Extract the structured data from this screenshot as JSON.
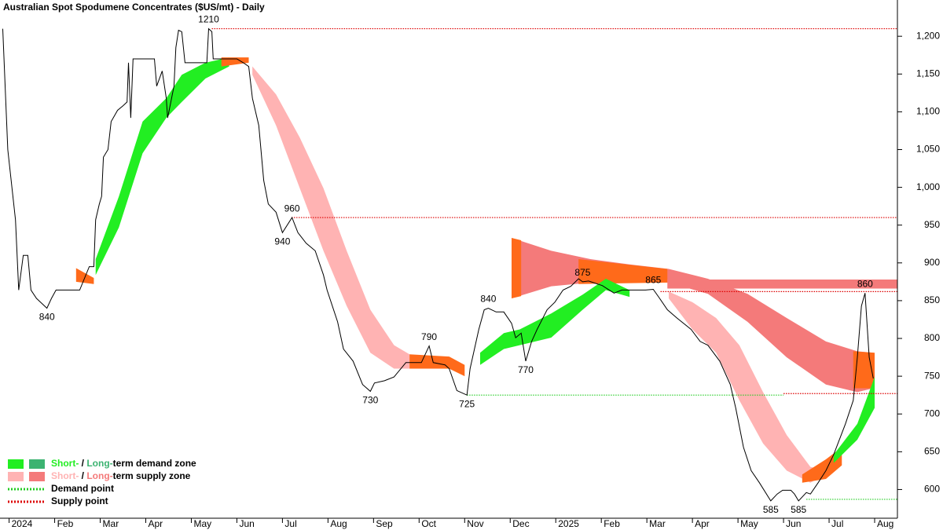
{
  "chart_data": {
    "type": "line",
    "title": "Australian Spot Spodumene Concentrates ($US/mt) - Daily",
    "xlim": [
      -0.2,
      19.5
    ],
    "ylim": [
      562,
      1248
    ],
    "xticks": [
      {
        "value": 0,
        "label": "2024"
      },
      {
        "value": 1,
        "label": "Feb"
      },
      {
        "value": 2,
        "label": "Mar"
      },
      {
        "value": 3,
        "label": "Apr"
      },
      {
        "value": 4,
        "label": "May"
      },
      {
        "value": 5,
        "label": "Jun"
      },
      {
        "value": 6,
        "label": "Jul"
      },
      {
        "value": 7,
        "label": "Aug"
      },
      {
        "value": 8,
        "label": "Sep"
      },
      {
        "value": 9,
        "label": "Oct"
      },
      {
        "value": 10,
        "label": "Nov"
      },
      {
        "value": 11,
        "label": "Dec"
      },
      {
        "value": 12,
        "label": "2025"
      },
      {
        "value": 13,
        "label": "Feb"
      },
      {
        "value": 14,
        "label": "Mar"
      },
      {
        "value": 15,
        "label": "Apr"
      },
      {
        "value": 16,
        "label": "May"
      },
      {
        "value": 17,
        "label": "Jun"
      },
      {
        "value": 18,
        "label": "Jul"
      },
      {
        "value": 19,
        "label": "Aug"
      }
    ],
    "yticks": [
      600,
      650,
      700,
      750,
      800,
      850,
      900,
      950,
      {
        "value": 1000,
        "label": "1,000"
      },
      {
        "value": 1050,
        "label": "1,050"
      },
      {
        "value": 1100,
        "label": "1,100"
      },
      {
        "value": 1150,
        "label": "1,150"
      },
      {
        "value": 1200,
        "label": "1,200"
      }
    ],
    "price": {
      "color": "#000000",
      "x": [
        -0.14,
        -0.03,
        0.14,
        0.21,
        0.31,
        0.41,
        0.48,
        0.6,
        0.83,
        0.93,
        1.03,
        1.55,
        1.76,
        1.86,
        1.9,
        1.98,
        2.03,
        2.07,
        2.17,
        2.24,
        2.38,
        2.5,
        2.59,
        2.62,
        2.67,
        2.72,
        3.19,
        3.24,
        3.36,
        3.45,
        3.48,
        3.55,
        3.62,
        3.66,
        3.72,
        3.79,
        3.86,
        4.34,
        4.38,
        4.45,
        4.48,
        5.0,
        5.14,
        5.26,
        5.34,
        5.48,
        5.59,
        5.69,
        5.86,
        6.0,
        6.21,
        6.34,
        6.52,
        6.72,
        6.9,
        6.98,
        7.21,
        7.34,
        7.55,
        7.76,
        7.93,
        8.02,
        8.24,
        8.45,
        8.71,
        9.05,
        9.22,
        9.31,
        9.57,
        9.66,
        9.83,
        10.05,
        10.12,
        10.31,
        10.43,
        10.52,
        10.69,
        10.86,
        11.03,
        11.12,
        11.24,
        11.34,
        11.47,
        11.59,
        11.81,
        11.98,
        12.16,
        12.33,
        12.5,
        12.59,
        12.72,
        13.02,
        13.28,
        13.45,
        13.62,
        13.97,
        14.14,
        14.28,
        14.45,
        14.66,
        14.97,
        15.17,
        15.34,
        15.6,
        15.83,
        15.95,
        16.12,
        16.29,
        16.47,
        16.72,
        16.86,
        16.98,
        17.16,
        17.24,
        17.33,
        17.5,
        17.59,
        17.76,
        17.93,
        18.1,
        18.36,
        18.53,
        18.62,
        18.71,
        18.79,
        18.88,
        18.97
      ],
      "values": [
        1210,
        1050,
        957,
        864,
        910,
        910,
        864,
        853,
        840,
        853,
        864,
        864,
        895,
        895,
        957,
        978,
        988,
        1040,
        1050,
        1087,
        1102,
        1108,
        1113,
        1165,
        1092,
        1170,
        1170,
        1134,
        1154,
        1118,
        1092,
        1113,
        1134,
        1185,
        1208,
        1206,
        1165,
        1165,
        1210,
        1206,
        1170,
        1170,
        1165,
        1160,
        1118,
        1082,
        1009,
        978,
        967,
        940,
        960,
        940,
        926,
        916,
        884,
        864,
        822,
        786,
        770,
        739,
        730,
        741,
        744,
        749,
        768,
        768,
        790,
        768,
        765,
        760,
        731,
        725,
        760,
        812,
        838,
        840,
        835,
        835,
        820,
        801,
        807,
        770,
        796,
        812,
        838,
        848,
        864,
        869,
        879,
        875,
        876,
        870,
        860,
        864,
        864,
        864,
        865,
        853,
        838,
        827,
        812,
        796,
        791,
        770,
        739,
        708,
        656,
        625,
        609,
        585,
        594,
        599,
        599,
        594,
        585,
        596,
        594,
        609,
        625,
        646,
        687,
        718,
        775,
        843,
        860,
        775,
        747
      ]
    },
    "zones": [
      {
        "color": "#ff6a1a",
        "x": [
          1.47,
          1.86
        ],
        "upper": [
          893,
          880
        ],
        "lower": [
          875,
          872
        ]
      },
      {
        "color": "#22ee22",
        "x": [
          1.9,
          2.41,
          2.93,
          3.45,
          3.79,
          4.31,
          4.83
        ],
        "upper": [
          905,
          988,
          1087,
          1118,
          1149,
          1165,
          1172
        ],
        "lower": [
          884,
          947,
          1045,
          1092,
          1113,
          1144,
          1160
        ]
      },
      {
        "color": "#ff6a1a",
        "x": [
          4.66,
          5.26
        ],
        "upper": [
          1172,
          1172
        ],
        "lower": [
          1160,
          1165
        ]
      },
      {
        "color": "#ffb3b3",
        "x": [
          5.34,
          5.86,
          6.38,
          6.9,
          7.41,
          7.93,
          8.45,
          8.79
        ],
        "upper": [
          1160,
          1123,
          1066,
          999,
          916,
          838,
          791,
          779
        ],
        "lower": [
          1149,
          1082,
          999,
          916,
          843,
          781,
          760,
          760
        ]
      },
      {
        "color": "#ff6a1a",
        "x": [
          8.79,
          9.66,
          10.0
        ],
        "upper": [
          779,
          776,
          765
        ],
        "lower": [
          760,
          760,
          750
        ]
      },
      {
        "color": "#f47a7a",
        "x": [
          11.03,
          11.9,
          12.76,
          13.62,
          14.48,
          15.34,
          16.21,
          17.07,
          17.93,
          18.62,
          18.97
        ],
        "upper": [
          933,
          916,
          905,
          898,
          892,
          879,
          859,
          827,
          796,
          783,
          781
        ],
        "lower": [
          853,
          869,
          874,
          876,
          874,
          859,
          822,
          775,
          739,
          729,
          734
        ]
      },
      {
        "color": "#ff6a1a",
        "x": [
          11.03,
          11.24
        ],
        "upper": [
          933,
          930
        ],
        "lower": [
          853,
          856
        ]
      },
      {
        "color": "#ff6a1a",
        "x": [
          12.5,
          14.45
        ],
        "upper": [
          905,
          892
        ],
        "lower": [
          872,
          874
        ]
      },
      {
        "color": "#f47a7a",
        "x": [
          14.45,
          19.5
        ],
        "upper": [
          878,
          878
        ],
        "lower": [
          866,
          866
        ]
      },
      {
        "color": "#22ee22",
        "x": [
          10.34,
          10.86,
          11.21,
          11.9,
          12.59,
          13.1,
          13.62
        ],
        "upper": [
          781,
          807,
          812,
          833,
          858,
          879,
          864
        ],
        "lower": [
          765,
          786,
          791,
          801,
          838,
          864,
          855
        ]
      },
      {
        "color": "#ffb3b3",
        "x": [
          14.48,
          15.0,
          15.52,
          16.03,
          16.55,
          17.07,
          17.59,
          17.93
        ],
        "upper": [
          862,
          848,
          827,
          791,
          729,
          672,
          630,
          625
        ],
        "lower": [
          853,
          812,
          781,
          718,
          661,
          625,
          609,
          620
        ]
      },
      {
        "color": "#ff6a1a",
        "x": [
          17.41,
          17.93,
          18.28
        ],
        "upper": [
          620,
          640,
          656
        ],
        "lower": [
          609,
          614,
          632
        ]
      },
      {
        "color": "#ff6a1a",
        "x": [
          18.53,
          19.0
        ],
        "upper": [
          783,
          781
        ],
        "lower": [
          734,
          734
        ]
      },
      {
        "color": "#22ee22",
        "x": [
          18.1,
          18.62,
          19.0
        ],
        "upper": [
          646,
          687,
          749
        ],
        "lower": [
          635,
          666,
          708
        ]
      }
    ],
    "supply_points": [
      {
        "color": "#dd0000",
        "value": 1210,
        "from": 4.45
      },
      {
        "color": "#dd0000",
        "value": 960,
        "from": 6.2
      },
      {
        "color": "#dd0000",
        "value": 862,
        "from": 14.3
      },
      {
        "color": "#dd0000",
        "value": 727,
        "from": 17.0
      }
    ],
    "demand_points": [
      {
        "color": "#22cc22",
        "value": 725,
        "from": 10.05,
        "to": 17.0
      },
      {
        "color": "#22cc22",
        "value": 587,
        "from": 17.5
      }
    ],
    "annotations": [
      {
        "x": 4.38,
        "value": 1210,
        "position": "above"
      },
      {
        "x": 0.83,
        "value": 840,
        "position": "below"
      },
      {
        "x": 6.21,
        "value": 960,
        "position": "above"
      },
      {
        "x": 6.0,
        "value": 940,
        "position": "below"
      },
      {
        "x": 7.93,
        "value": 730,
        "position": "below"
      },
      {
        "x": 9.22,
        "value": 790,
        "position": "above"
      },
      {
        "x": 10.05,
        "value": 725,
        "position": "below"
      },
      {
        "x": 10.52,
        "value": 840,
        "position": "above"
      },
      {
        "x": 11.34,
        "value": 770,
        "position": "below"
      },
      {
        "x": 12.59,
        "value": 875,
        "position": "above"
      },
      {
        "x": 14.14,
        "value": 865,
        "position": "above"
      },
      {
        "x": 16.72,
        "value": 585,
        "position": "below"
      },
      {
        "x": 17.33,
        "value": 585,
        "position": "below"
      },
      {
        "x": 18.79,
        "value": 860,
        "position": "above"
      }
    ],
    "legend": {
      "position": "lower left",
      "items": [
        {
          "colors": [
            "#22ee22",
            "#3cb371"
          ],
          "parts": [
            {
              "text": "Short-",
              "color": "#22ee22"
            },
            {
              "text": " / ",
              "color": "#000000"
            },
            {
              "text": "Long-",
              "color": "#3cb371"
            },
            {
              "text": "term demand zone",
              "color": "#000000"
            }
          ]
        },
        {
          "colors": [
            "#ffb3b3",
            "#f47a7a"
          ],
          "parts": [
            {
              "text": "Short-",
              "color": "#ffb3b3"
            },
            {
              "text": " / ",
              "color": "#000000"
            },
            {
              "text": "Long-",
              "color": "#f47a7a"
            },
            {
              "text": "term supply zone",
              "color": "#000000"
            }
          ]
        },
        {
          "line": "#22cc22",
          "parts": [
            {
              "text": "Demand point",
              "color": "#000000"
            }
          ]
        },
        {
          "line": "#dd0000",
          "parts": [
            {
              "text": "Supply point",
              "color": "#000000"
            }
          ]
        }
      ]
    }
  }
}
